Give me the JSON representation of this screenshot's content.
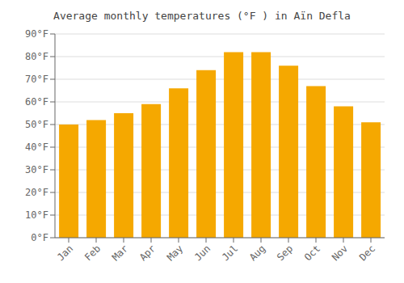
{
  "chart_data": {
    "type": "bar",
    "title": "Average monthly temperatures (°F ) in Aïn Defla",
    "categories": [
      "Jan",
      "Feb",
      "Mar",
      "Apr",
      "May",
      "Jun",
      "Jul",
      "Aug",
      "Sep",
      "Oct",
      "Nov",
      "Dec"
    ],
    "values": [
      50,
      52,
      55,
      59,
      66,
      74,
      82,
      82,
      76,
      67,
      58,
      51
    ],
    "color": "#F5A800",
    "ylim": [
      0,
      90
    ],
    "yticks": [
      {
        "value": 0,
        "label": "0°F"
      },
      {
        "value": 10,
        "label": "10°F"
      },
      {
        "value": 20,
        "label": "20°F"
      },
      {
        "value": 30,
        "label": "30°F"
      },
      {
        "value": 40,
        "label": "40°F"
      },
      {
        "value": 50,
        "label": "50°F"
      },
      {
        "value": 60,
        "label": "60°F"
      },
      {
        "value": 70,
        "label": "70°F"
      },
      {
        "value": 80,
        "label": "80°F"
      },
      {
        "value": 90,
        "label": "90°F"
      }
    ],
    "grid": true
  }
}
